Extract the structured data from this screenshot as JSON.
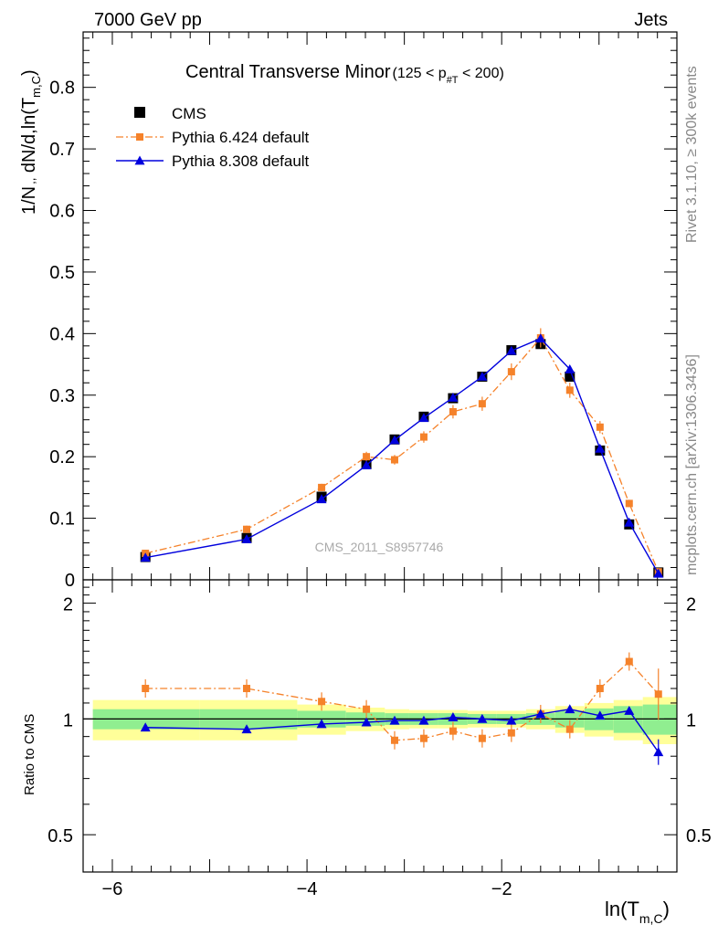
{
  "header": {
    "left": "7000 GeV pp",
    "right": "Jets"
  },
  "side_labels": {
    "rivet": "Rivet 3.1.10, ≥ 300k events",
    "mcplots": "mcplots.cern.ch [arXiv:1306.3436]"
  },
  "watermark": "CMS_2011_S8957746",
  "colors": {
    "cms": "#000000",
    "pythia6": "#f5822a",
    "pythia8": "#0000dd",
    "band_inner": "#90ee90",
    "band_outer": "#ffff99"
  },
  "chart_data": {
    "type": "line",
    "title": "Central Transverse Minor",
    "title_cut": "(125 < p",
    "title_cut_sub": "#T",
    "title_cut_end": " < 200)",
    "ylabel_main": "1/N",
    "ylabel_main_rest": " dN/d,ln(T",
    "ylabel_main_sub": "m,C",
    "ylabel_main_end": ")",
    "ylabel_main_comma": ",,",
    "ylabel_ratio": "Ratio to CMS",
    "xlabel": "ln(T",
    "xlabel_sub": "m,C",
    "xlabel_end": ")",
    "xlim": [
      -6.3,
      -0.2
    ],
    "ylim_main": [
      0,
      0.89
    ],
    "ylim_ratio": [
      0.4,
      2.3
    ],
    "ratio_scale": "log",
    "x_ticks": [
      {
        "v": -6,
        "label": "−6"
      },
      {
        "v": -4,
        "label": "−4"
      },
      {
        "v": -2,
        "label": "−2"
      }
    ],
    "y_ticks_main": [
      {
        "v": 0.1,
        "label": "0.1"
      },
      {
        "v": 0.2,
        "label": "0.2"
      },
      {
        "v": 0.3,
        "label": "0.3"
      },
      {
        "v": 0.4,
        "label": "0.4"
      },
      {
        "v": 0.5,
        "label": "0.5"
      },
      {
        "v": 0.6,
        "label": "0.6"
      },
      {
        "v": 0.7,
        "label": "0.7"
      },
      {
        "v": 0.8,
        "label": "0.8"
      },
      {
        "v": 0,
        "label": "0"
      }
    ],
    "y_ticks_ratio": [
      {
        "v": 0.5,
        "label": "0.5"
      },
      {
        "v": 1,
        "label": "1"
      },
      {
        "v": 2,
        "label": "2"
      }
    ],
    "bins": [
      -6.2,
      -5.1,
      -4.1,
      -3.6,
      -3.2,
      -2.95,
      -2.65,
      -2.35,
      -2.05,
      -1.75,
      -1.45,
      -1.15,
      -0.85,
      -0.55,
      -0.2
    ],
    "x": [
      -5.66,
      -4.62,
      -3.85,
      -3.39,
      -3.1,
      -2.8,
      -2.5,
      -2.2,
      -1.9,
      -1.6,
      -1.3,
      -0.99,
      -0.69,
      -0.39
    ],
    "series": [
      {
        "name": "CMS",
        "marker": "square",
        "values": [
          0.037,
          0.068,
          0.135,
          0.188,
          0.228,
          0.265,
          0.295,
          0.33,
          0.373,
          0.383,
          0.33,
          0.21,
          0.09,
          0.012
        ]
      },
      {
        "name": "Pythia 6.424 default",
        "marker": "square-open-line",
        "values": [
          0.043,
          0.082,
          0.15,
          0.2,
          0.195,
          0.232,
          0.273,
          0.286,
          0.338,
          0.393,
          0.308,
          0.248,
          0.124,
          0.013
        ],
        "ratio": [
          1.2,
          1.2,
          1.11,
          1.06,
          0.88,
          0.89,
          0.93,
          0.89,
          0.92,
          1.03,
          0.94,
          1.2,
          1.41,
          1.16
        ]
      },
      {
        "name": "Pythia 8.308 default",
        "marker": "triangle",
        "values": [
          0.036,
          0.066,
          0.131,
          0.186,
          0.227,
          0.263,
          0.296,
          0.33,
          0.372,
          0.392,
          0.342,
          0.213,
          0.093,
          0.01
        ],
        "ratio": [
          0.95,
          0.94,
          0.97,
          0.98,
          0.99,
          0.99,
          1.01,
          1.0,
          0.99,
          1.03,
          1.06,
          1.02,
          1.05,
          0.82
        ]
      }
    ],
    "band_inner_half": [
      0.06,
      0.06,
      0.05,
      0.04,
      0.035,
      0.035,
      0.035,
      0.03,
      0.03,
      0.035,
      0.05,
      0.065,
      0.08,
      0.09
    ],
    "band_outer_half": [
      0.12,
      0.12,
      0.09,
      0.07,
      0.06,
      0.055,
      0.055,
      0.05,
      0.05,
      0.06,
      0.08,
      0.1,
      0.12,
      0.14
    ],
    "legend": [
      "CMS",
      "Pythia 6.424 default",
      "Pythia 8.308 default"
    ],
    "legend_position": "top-left"
  }
}
